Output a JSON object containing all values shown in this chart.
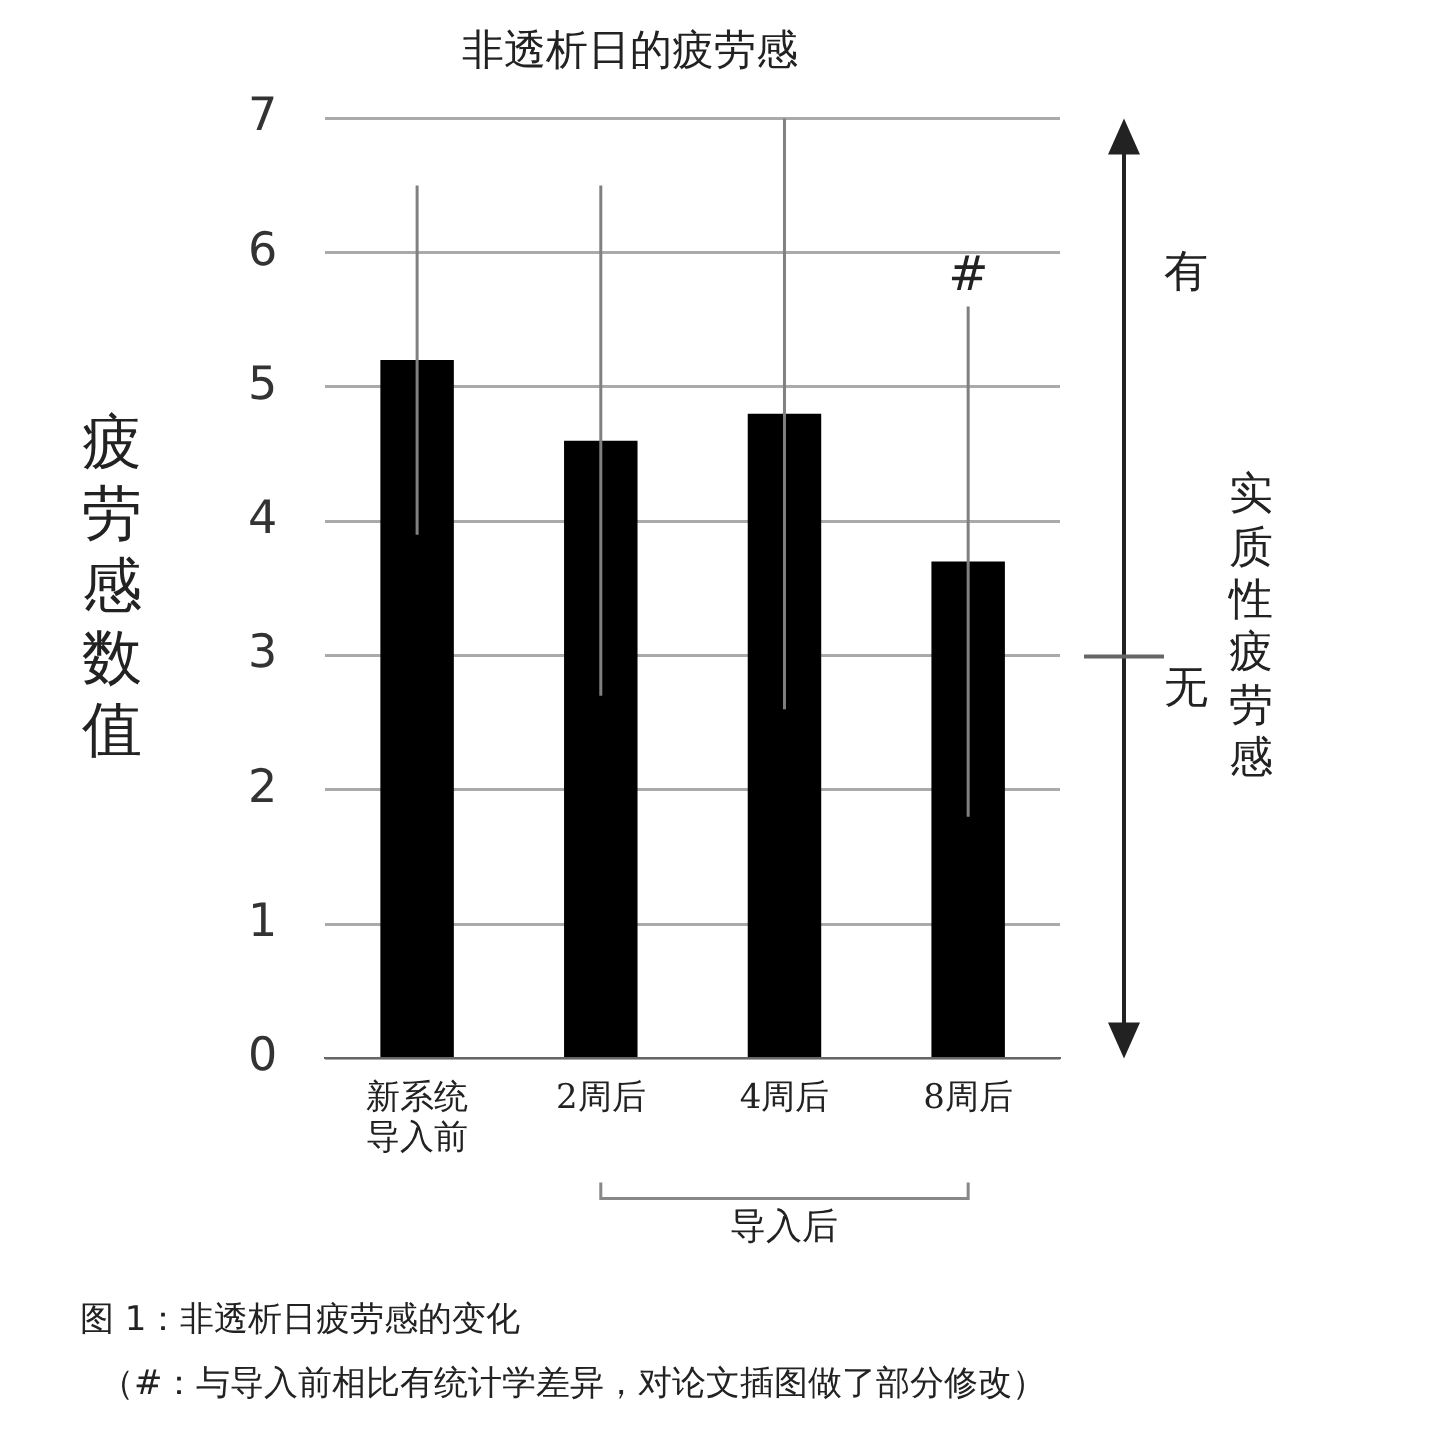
{
  "chart_data": {
    "type": "bar",
    "title": "非透析日的疲劳感",
    "ylabel": "疲劳感数值",
    "categories": [
      "新系统导入前",
      "2周后",
      "4周后",
      "8周后"
    ],
    "values": [
      5.2,
      4.6,
      4.8,
      3.7
    ],
    "errors": [
      1.3,
      1.9,
      2.2,
      1.9
    ],
    "color": "#000000",
    "ylim": [
      0,
      7
    ],
    "yticks": [
      0,
      1,
      2,
      3,
      4,
      5,
      6,
      7
    ],
    "grid": "y",
    "legend": false,
    "annotations": [
      "#",
      "有",
      "无",
      "实质性疲劳感",
      "导入后",
      "图 1：非透析日疲劳感的变化",
      "（#：与导入前相比有统计学差异，对论文插图做了部分修改）"
    ]
  }
}
